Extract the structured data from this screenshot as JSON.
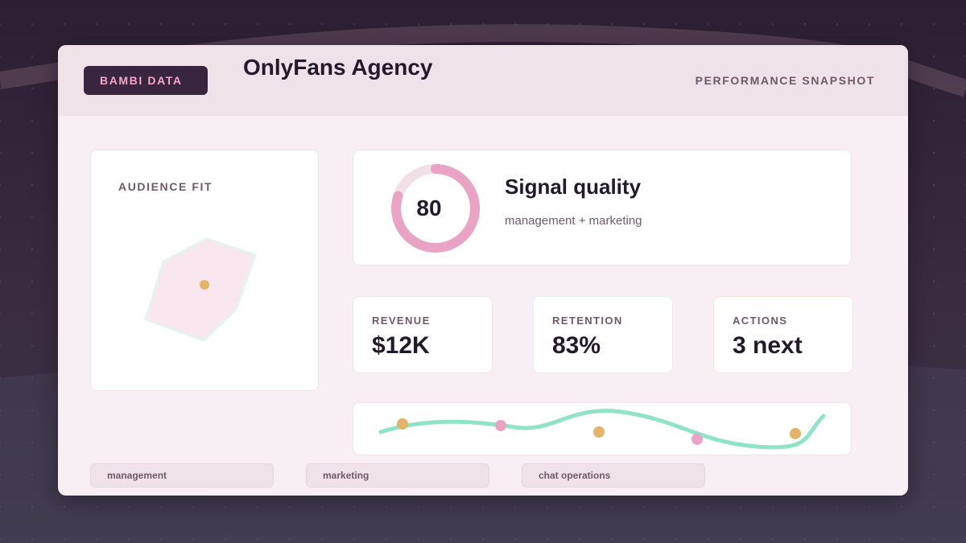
{
  "header": {
    "brand": "BAMBI DATA",
    "title": "OnlyFans Agency",
    "subtitle": "PERFORMANCE SNAPSHOT"
  },
  "audience": {
    "label": "AUDIENCE FIT"
  },
  "signal": {
    "score": "80",
    "score_fraction": 0.8,
    "title": "Signal quality",
    "subtitle": "management + marketing"
  },
  "metrics": [
    {
      "label": "REVENUE",
      "value": "$12K"
    },
    {
      "label": "RETENTION",
      "value": "83%"
    },
    {
      "label": "ACTIONS",
      "value": "3 next"
    }
  ],
  "tags": [
    "management",
    "marketing",
    "chat operations"
  ],
  "colors": {
    "accent_pink": "#e9a3c4",
    "accent_mint": "#8fe3c6",
    "accent_gold": "#e3b46a",
    "dark": "#3a2540"
  }
}
